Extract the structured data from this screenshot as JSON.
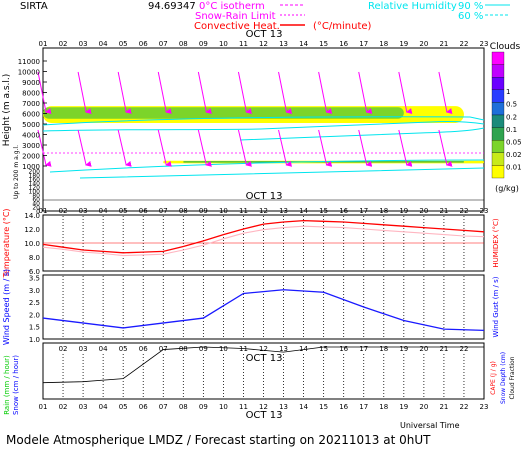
{
  "header": {
    "site": "SIRTA",
    "coords": "94.69347",
    "legend_isotherm": "0°C isotherm",
    "legend_snow_rain": "Snow-Rain Limit",
    "legend_convective": "Convective Heat.",
    "legend_convective_unit": "(°C/minute)",
    "legend_rh": "Relative Humidity",
    "rh_90": "90 %",
    "rh_60": "60 %",
    "date_label": "OCT 13"
  },
  "footer": {
    "forecast_text": "Modele Atmospherique LMDZ / Forecast starting on 20211013 at 0hUT",
    "universal_time": "Universal Time"
  },
  "colors": {
    "frame": "#000000",
    "magenta": "#ff00ff",
    "cyan": "#00e5ee",
    "red": "#ff0000",
    "pink": "#ffb6c1",
    "blue": "#1a1aff",
    "cloud_yellow": "#ffff00",
    "cloud_green": "#7cd42a",
    "cloud_darkgreen": "#2fb14a",
    "precip": "#000000"
  },
  "chart_data": [
    {
      "type": "heatmap",
      "title": "Clouds",
      "xlabel": "Universal Time",
      "ylabel": "Height (m a.s.l.)",
      "ylabel_lower": "Up to 200 m a.g.l.",
      "x_ticks": [
        "01",
        "02",
        "03",
        "04",
        "05",
        "06",
        "07",
        "08",
        "09",
        "10",
        "11",
        "12",
        "13",
        "14",
        "15",
        "16",
        "17",
        "18",
        "19",
        "20",
        "21",
        "22",
        "23"
      ],
      "y_ticks_upper": [
        1000,
        2000,
        3000,
        4000,
        5000,
        6000,
        7000,
        8000,
        9000,
        10000,
        11000
      ],
      "y_ticks_lower": [
        0,
        20,
        40,
        60,
        80,
        100,
        120,
        140,
        160,
        180,
        200
      ],
      "colorbar_title": "Clouds",
      "colorbar_unit": "(g/kg)",
      "colorbar_ticks": [
        "1",
        "0.5",
        "0.2",
        "0.1",
        "0.05",
        "0.02",
        "0.01"
      ],
      "cloud_layers": [
        {
          "level": "0.01",
          "base_m": 5100,
          "top_m": 6700,
          "start_hour": 1,
          "end_hour": 22
        },
        {
          "level": "0.02",
          "base_m": 5500,
          "top_m": 6600,
          "start_hour": 1,
          "end_hour": 19
        },
        {
          "level": "0.01",
          "base_m": 1250,
          "top_m": 1500,
          "start_hour": 7,
          "end_hour": 23
        },
        {
          "level": "0.05",
          "base_m": 1330,
          "top_m": 1450,
          "start_hour": 8,
          "end_hour": 22
        }
      ],
      "isotherm_0c_m": 2300
    },
    {
      "type": "line",
      "ylabel": "Temperature (°C)",
      "ylabel_right": "HUMIDEX (°C)",
      "x": [
        1,
        2,
        3,
        4,
        5,
        6,
        7,
        8,
        9,
        10,
        11,
        12,
        13,
        14,
        15,
        16,
        17,
        18,
        19,
        20,
        21,
        22,
        23
      ],
      "series": [
        {
          "values": [
            9.8,
            9.4,
            9.0,
            8.8,
            8.6,
            8.7,
            8.8,
            9.5,
            10.3,
            11.2,
            12.0,
            12.7,
            13.0,
            13.2,
            13.1,
            13.0,
            12.8,
            12.6,
            12.4,
            12.2,
            12.0,
            11.8,
            11.6
          ]
        },
        {
          "values": [
            9.4,
            9.1,
            8.7,
            8.5,
            8.2,
            8.3,
            8.4,
            9.0,
            9.7,
            10.6,
            11.4,
            11.9,
            12.2,
            12.4,
            12.3,
            12.2,
            12.0,
            11.8,
            11.6,
            11.4,
            11.2,
            11.0,
            10.9
          ]
        }
      ],
      "y_ticks": [
        6.0,
        8.0,
        10.0,
        12.0,
        14.0
      ],
      "ylim": [
        6.0,
        14.0
      ]
    },
    {
      "type": "line",
      "ylabel": "Wind Speed (m / s)",
      "ylabel_right": "Wind Gust (m / s)",
      "x": [
        1,
        5,
        9,
        11,
        13,
        15,
        17,
        19,
        21,
        23
      ],
      "series": [
        {
          "values": [
            1.85,
            1.45,
            1.85,
            2.85,
            3.0,
            2.9,
            2.3,
            1.75,
            1.4,
            1.35
          ]
        }
      ],
      "y_ticks": [
        1.0,
        1.5,
        2.0,
        2.5,
        3.0,
        3.5
      ],
      "ylim": [
        1.0,
        3.6
      ]
    },
    {
      "type": "line",
      "ylabel": "Rain (mm / hour)",
      "ylabel_snow": "Snow (cm / hour)",
      "ylabel_right": "CAPE (J / g)",
      "ylabel_right2": "Snow Depth (cm)",
      "ylabel_right3": "Cloud Fraction",
      "x": [
        1,
        3,
        5,
        7,
        9,
        11,
        13,
        15,
        17,
        19,
        21,
        23
      ],
      "series": [
        {
          "values": [
            0.3,
            0.32,
            0.38,
            0.95,
            1.0,
            0.97,
            0.9,
            1.0,
            1.0,
            1.0,
            1.0,
            1.0
          ]
        }
      ],
      "ylim": [
        0,
        1.0
      ]
    }
  ]
}
